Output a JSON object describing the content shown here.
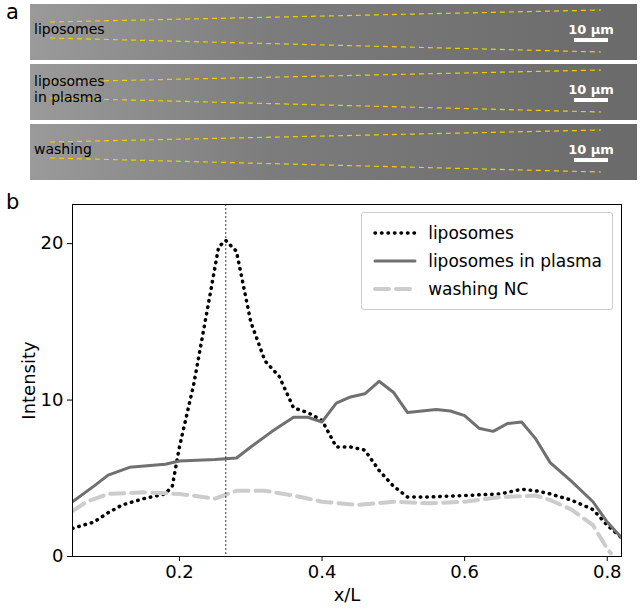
{
  "chart_data": {
    "type": "line",
    "panel_label": "b",
    "x_label": "x/L",
    "y_label": "Intensity",
    "xlim": [
      0.05,
      0.82
    ],
    "xticks": [
      0.2,
      0.4,
      0.6,
      0.8
    ],
    "ylim": [
      0,
      22.5
    ],
    "yticks": [
      0,
      10,
      20
    ],
    "legend": "upper right",
    "vline_x": 0.265,
    "series": [
      {
        "name": "liposomes",
        "color": "#000000",
        "line_style": "dotted",
        "x": [
          0.05,
          0.08,
          0.1,
          0.12,
          0.15,
          0.18,
          0.19,
          0.2,
          0.22,
          0.24,
          0.255,
          0.265,
          0.28,
          0.3,
          0.32,
          0.34,
          0.36,
          0.38,
          0.4,
          0.42,
          0.44,
          0.46,
          0.48,
          0.5,
          0.52,
          0.55,
          0.6,
          0.65,
          0.68,
          0.7,
          0.72,
          0.75,
          0.78,
          0.8,
          0.82
        ],
        "values": [
          1.8,
          2.2,
          2.8,
          3.3,
          3.7,
          4.0,
          4.5,
          7.0,
          11.0,
          16.0,
          19.8,
          20.2,
          19.5,
          15.0,
          12.5,
          11.5,
          9.5,
          9.2,
          8.7,
          7.0,
          7.0,
          6.8,
          5.5,
          4.5,
          3.8,
          3.8,
          3.9,
          4.0,
          4.3,
          4.2,
          4.0,
          3.6,
          3.0,
          2.0,
          1.2
        ]
      },
      {
        "name": "liposomes in plasma",
        "color": "#707070",
        "line_style": "solid",
        "x": [
          0.05,
          0.08,
          0.1,
          0.13,
          0.18,
          0.2,
          0.25,
          0.28,
          0.3,
          0.33,
          0.36,
          0.38,
          0.4,
          0.42,
          0.44,
          0.46,
          0.48,
          0.5,
          0.52,
          0.54,
          0.56,
          0.58,
          0.6,
          0.62,
          0.64,
          0.66,
          0.68,
          0.7,
          0.72,
          0.75,
          0.78,
          0.8,
          0.82
        ],
        "values": [
          3.5,
          4.5,
          5.2,
          5.7,
          5.9,
          6.1,
          6.2,
          6.3,
          7.0,
          8.0,
          8.9,
          8.9,
          8.6,
          9.8,
          10.2,
          10.4,
          11.2,
          10.5,
          9.2,
          9.3,
          9.4,
          9.3,
          9.0,
          8.2,
          8.0,
          8.5,
          8.6,
          7.5,
          6.0,
          4.8,
          3.5,
          2.2,
          1.2
        ]
      },
      {
        "name": "washing NC",
        "color": "#cccccc",
        "line_style": "dashed",
        "x": [
          0.05,
          0.07,
          0.1,
          0.15,
          0.2,
          0.25,
          0.28,
          0.32,
          0.36,
          0.4,
          0.45,
          0.5,
          0.55,
          0.6,
          0.65,
          0.7,
          0.72,
          0.75,
          0.78,
          0.8,
          0.805
        ],
        "values": [
          2.9,
          3.5,
          4.0,
          4.1,
          4.0,
          3.7,
          4.2,
          4.2,
          3.9,
          3.5,
          3.3,
          3.5,
          3.4,
          3.5,
          3.8,
          3.9,
          3.6,
          3.0,
          2.0,
          0.5,
          0.2
        ]
      }
    ]
  },
  "image_panel": {
    "panel_label": "a",
    "rows": [
      {
        "label": "liposomes",
        "scale_bar": "10 µm"
      },
      {
        "label": "liposomes in plasma",
        "scale_bar": "10 µm"
      },
      {
        "label": "washing",
        "scale_bar": "10 µm"
      }
    ]
  }
}
